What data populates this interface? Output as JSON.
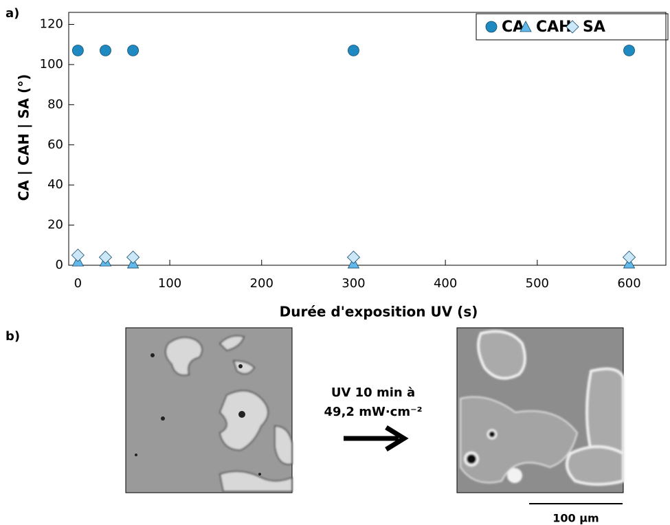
{
  "panel_labels": [
    "a)",
    "b)"
  ],
  "chart_data": {
    "type": "scatter",
    "x_label": "Durée d'exposition UV (s)",
    "y_label": "CA | CAH | SA (°)",
    "x": [
      0,
      30,
      60,
      300,
      600
    ],
    "series": [
      {
        "name": "CA",
        "color": "#1f8ac2",
        "marker": "circle",
        "values": [
          107,
          107,
          107,
          107,
          107
        ]
      },
      {
        "name": "CAH",
        "color": "#62b9e9",
        "marker": "triangle",
        "values": [
          2,
          2,
          1,
          1,
          1
        ]
      },
      {
        "name": "SA",
        "color": "#cbe7f8",
        "marker": "diamond",
        "values": [
          5,
          4,
          4,
          4,
          4
        ]
      }
    ],
    "xlim": [
      -10,
      640
    ],
    "xticks": [
      0,
      100,
      200,
      300,
      400,
      500,
      600
    ],
    "ylim": [
      0,
      126
    ],
    "yticks": [
      0,
      20,
      40,
      60,
      80,
      100,
      120
    ],
    "legend": "top-right"
  },
  "images": {
    "arrow_text": [
      "UV 10 min à",
      "49,2 mW·cm⁻²"
    ],
    "scale_bar": "100 µm"
  }
}
